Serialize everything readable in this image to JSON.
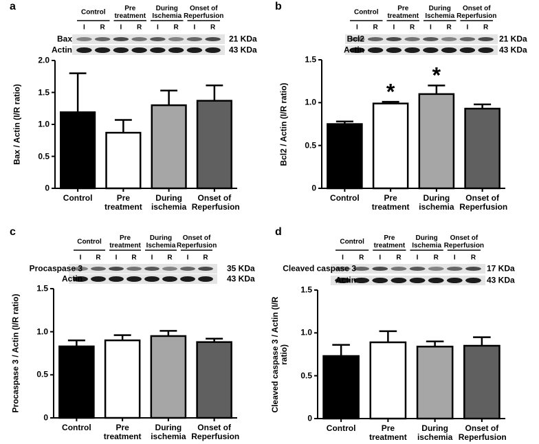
{
  "chart_data": [
    {
      "type": "bar",
      "panel": "a",
      "ylabel": "Bax / Actin (I/R ratio)",
      "categories": [
        "Control",
        "Pre treatment",
        "During ischemia",
        "Onset of Reperfusion"
      ],
      "values": [
        1.19,
        0.87,
        1.3,
        1.37
      ],
      "errors": [
        0.61,
        0.2,
        0.23,
        0.24
      ],
      "colors": [
        "#000000",
        "#ffffff",
        "#a6a6a6",
        "#606060"
      ],
      "ylim": [
        0,
        2
      ],
      "yticks": [
        0,
        0.5,
        {
          "value": 1,
          "label": "1.0"
        },
        1.5,
        {
          "value": 2,
          "label": "2.0"
        }
      ],
      "blot_groups": [
        "Control",
        "Pre treatment",
        "During Ischemia",
        "Onset of Reperfusion"
      ],
      "blot_lanes": [
        "I",
        "R"
      ],
      "blot_rows": [
        {
          "protein": "Bax",
          "size": "21 KDa"
        },
        {
          "protein": "Actin",
          "size": "43 KDa"
        }
      ]
    },
    {
      "type": "bar",
      "panel": "b",
      "ylabel": "Bcl2 / Actin (I/R ratio)",
      "categories": [
        "Control",
        "Pre treatment",
        "During ischemia",
        "Onset of Reperfusion"
      ],
      "values": [
        0.75,
        0.99,
        1.1,
        0.93
      ],
      "errors": [
        0.03,
        0.02,
        0.1,
        0.05
      ],
      "significance": [
        null,
        "*",
        "*",
        null
      ],
      "colors": [
        "#000000",
        "#ffffff",
        "#a6a6a6",
        "#606060"
      ],
      "ylim": [
        0,
        1.5
      ],
      "yticks": [
        0,
        0.5,
        {
          "value": 1,
          "label": "1.0"
        },
        1.5
      ],
      "blot_groups": [
        "Control",
        "Pre treatment",
        "During Ischemia",
        "Onset of Reperfusion"
      ],
      "blot_lanes": [
        "I",
        "R"
      ],
      "blot_rows": [
        {
          "protein": "Bcl2",
          "size": "21 KDa"
        },
        {
          "protein": "Actin",
          "size": "43 KDa"
        }
      ]
    },
    {
      "type": "bar",
      "panel": "c",
      "ylabel": "Procaspase 3 / Actin (I/R ratio)",
      "categories": [
        "Control",
        "Pre treatment",
        "During ischemia",
        "Onset of Reperfusion"
      ],
      "values": [
        0.83,
        0.9,
        0.95,
        0.88
      ],
      "errors": [
        0.07,
        0.06,
        0.06,
        0.04
      ],
      "colors": [
        "#000000",
        "#ffffff",
        "#a6a6a6",
        "#606060"
      ],
      "ylim": [
        0,
        1.5
      ],
      "yticks": [
        0,
        0.5,
        {
          "value": 1,
          "label": "1.0"
        },
        1.5
      ],
      "blot_groups": [
        "Control",
        "Pre treatment",
        "During Ischemia",
        "Onset of Reperfusion"
      ],
      "blot_lanes": [
        "I",
        "R"
      ],
      "blot_rows": [
        {
          "protein": "Procaspase 3",
          "size": "35 KDa"
        },
        {
          "protein": "Actin",
          "size": "43 KDa"
        }
      ]
    },
    {
      "type": "bar",
      "panel": "d",
      "ylabel": "Cleaved caspase 3 / Actin (I/R ratio)",
      "categories": [
        "Control",
        "Pre treatment",
        "During ischemia",
        "Onset of Reperfusion"
      ],
      "values": [
        0.73,
        0.89,
        0.84,
        0.85
      ],
      "errors": [
        0.13,
        0.13,
        0.06,
        0.1
      ],
      "colors": [
        "#000000",
        "#ffffff",
        "#a6a6a6",
        "#606060"
      ],
      "ylim": [
        0,
        1.5
      ],
      "yticks": [
        0,
        0.5,
        {
          "value": 1,
          "label": "1.0"
        },
        1.5
      ],
      "blot_groups": [
        "Control",
        "Pre treatment",
        "During Ischemia",
        "Onset of Reperfusion"
      ],
      "blot_lanes": [
        "I",
        "R"
      ],
      "blot_rows": [
        {
          "protein": "Cleaved caspase 3",
          "size": "17 KDa"
        },
        {
          "protein": "Actin",
          "size": "43 KDa"
        }
      ]
    }
  ]
}
